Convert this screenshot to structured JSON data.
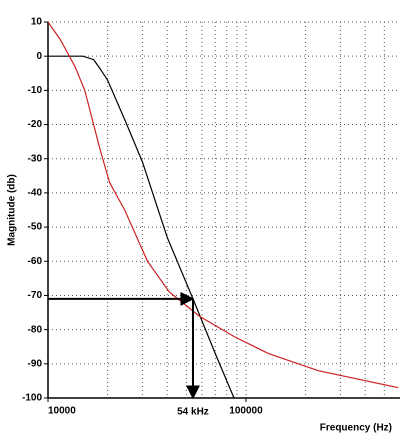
{
  "chart_data": {
    "type": "line",
    "xlabel": "Frequency (Hz)",
    "ylabel": "Magnitude (db)",
    "xscale": "log",
    "grid": true,
    "xlim": [
      10000,
      600000
    ],
    "ylim": [
      -100,
      10
    ],
    "xticks": [
      10000,
      100000
    ],
    "minor_xticks": [
      20000,
      30000,
      40000,
      50000,
      60000,
      70000,
      80000,
      90000,
      200000,
      300000,
      400000,
      500000
    ],
    "yticks": [
      10,
      0,
      -10,
      -20,
      -30,
      -40,
      -50,
      -60,
      -70,
      -80,
      -90,
      -100
    ],
    "series": [
      {
        "color": "#000000",
        "x": [
          10000,
          15000,
          17000,
          18000,
          20000,
          25000,
          30000,
          40000,
          54000,
          70000,
          87000
        ],
        "values": [
          0,
          0,
          -1,
          -3,
          -7,
          -20,
          -31,
          -53,
          -71,
          -87,
          -100
        ]
      },
      {
        "color": "#cc2222",
        "x": [
          10000,
          11500,
          13670,
          15340,
          18260,
          20480,
          24400,
          31800,
          41000,
          58000,
          87000,
          130000,
          232000,
          588000
        ],
        "values": [
          10,
          5,
          -3,
          -10,
          -27,
          -37,
          -45,
          -60,
          -69,
          -76,
          -82,
          -87,
          -92,
          -97
        ]
      }
    ],
    "annotation": {
      "text": "54 kHz",
      "x": 54000,
      "y": -71
    }
  }
}
